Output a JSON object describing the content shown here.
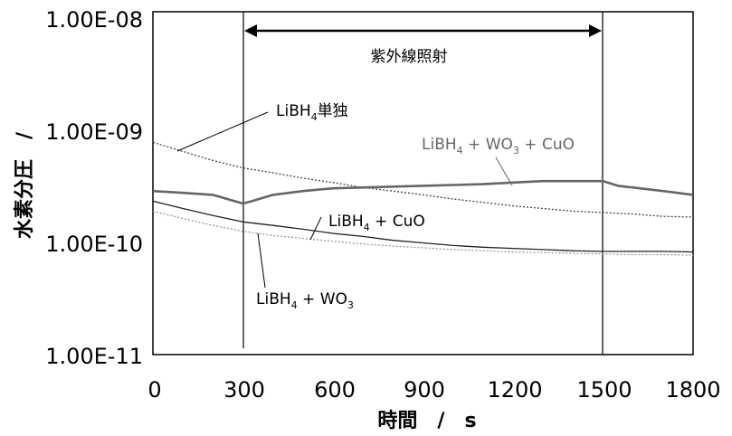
{
  "chart_data": {
    "type": "line",
    "title": "",
    "xlabel": "時間　/　s",
    "ylabel": "水素分圧　/",
    "xlim": [
      0,
      1800
    ],
    "ylim": [
      1e-11,
      1e-08
    ],
    "yscale": "log",
    "x_ticks": [
      "0",
      "300",
      "600",
      "900",
      "1200",
      "1500",
      "1800"
    ],
    "y_ticks": [
      "1.00E-08",
      "1.00E-09",
      "1.00E-10",
      "1.00E-11"
    ],
    "grid": false,
    "legend": "none",
    "series": [
      {
        "name": "LiBH4単独",
        "color": "#444444",
        "style": "dotted",
        "x": [
          0,
          100,
          200,
          300,
          400,
          500,
          600,
          700,
          800,
          900,
          1000,
          1100,
          1200,
          1300,
          1400,
          1500,
          1600,
          1700,
          1800
        ],
        "y": [
          7.2e-10,
          6e-10,
          5e-10,
          4.3e-10,
          3.9e-10,
          3.5e-10,
          3.2e-10,
          2.9e-10,
          2.7e-10,
          2.5e-10,
          2.3e-10,
          2.15e-10,
          2e-10,
          1.9e-10,
          1.8e-10,
          1.75e-10,
          1.7e-10,
          1.62e-10,
          1.6e-10
        ]
      },
      {
        "name": "LiBH4 + WO3 + CuO",
        "color": "#666666",
        "style": "solid-thick",
        "x": [
          0,
          100,
          200,
          300,
          330,
          400,
          500,
          600,
          700,
          800,
          900,
          1000,
          1100,
          1200,
          1300,
          1400,
          1500,
          1550,
          1600,
          1700,
          1800
        ],
        "y": [
          2.7e-10,
          2.6e-10,
          2.5e-10,
          2.1e-10,
          2.2e-10,
          2.5e-10,
          2.7e-10,
          2.85e-10,
          2.9e-10,
          2.95e-10,
          3e-10,
          3.05e-10,
          3.1e-10,
          3.2e-10,
          3.3e-10,
          3.3e-10,
          3.3e-10,
          3e-10,
          2.9e-10,
          2.7e-10,
          2.5e-10
        ]
      },
      {
        "name": "LiBH4 + CuO",
        "color": "#222222",
        "style": "solid-thin",
        "x": [
          0,
          100,
          200,
          300,
          400,
          500,
          600,
          700,
          800,
          900,
          1000,
          1100,
          1200,
          1300,
          1400,
          1500,
          1600,
          1700,
          1800
        ],
        "y": [
          2.2e-10,
          1.9e-10,
          1.65e-10,
          1.45e-10,
          1.35e-10,
          1.25e-10,
          1.15e-10,
          1.08e-10,
          1e-10,
          9.5e-11,
          9e-11,
          8.7e-11,
          8.5e-11,
          8.3e-11,
          8.1e-11,
          8e-11,
          8e-11,
          8e-11,
          7.9e-11
        ]
      },
      {
        "name": "LiBH4 + WO3",
        "color": "#999999",
        "style": "dotted",
        "x": [
          0,
          100,
          200,
          300,
          400,
          500,
          600,
          700,
          800,
          900,
          1000,
          1100,
          1200,
          1300,
          1400,
          1500,
          1600,
          1700,
          1800
        ],
        "y": [
          1.8e-10,
          1.55e-10,
          1.35e-10,
          1.2e-10,
          1.1e-10,
          1.04e-10,
          9.8e-11,
          9.3e-11,
          8.9e-11,
          8.6e-11,
          8.3e-11,
          8.1e-11,
          7.9e-11,
          7.8e-11,
          7.7e-11,
          7.6e-11,
          7.5e-11,
          7.5e-11,
          7.4e-11
        ]
      }
    ],
    "annotations": {
      "uv_label": "紫外線照射",
      "uv_range": [
        300,
        1500
      ],
      "libh4_alone": {
        "base": "LiBH",
        "sub": "4",
        "tail": "単独"
      },
      "wo3_cuo": {
        "base": "LiBH",
        "sub": "4",
        "mid": " + WO",
        "sub2": "3",
        "tail": " + CuO"
      },
      "cuo": {
        "base": "LiBH",
        "sub": "4",
        "tail": " + CuO"
      },
      "wo3": {
        "base": "LiBH",
        "sub": "4",
        "mid": " + WO",
        "sub2": "3",
        "tail": ""
      }
    }
  }
}
